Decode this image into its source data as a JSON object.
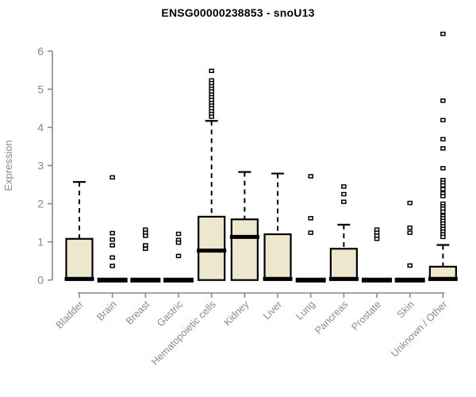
{
  "chart_data": {
    "type": "boxplot",
    "title": "ENSG00000238853 - snoU13",
    "ylabel": "Expression",
    "ylim": [
      0,
      6
    ],
    "yticks": [
      0,
      1,
      2,
      3,
      4,
      5,
      6
    ],
    "grid": false,
    "legend": "none",
    "box_fill": "#ede8cd",
    "box_stroke": "#000000",
    "axis_color": "#898989",
    "categories": [
      "Bladder",
      "Brain",
      "Breast",
      "Gastric",
      "Hematopoietic cells",
      "Kidney",
      "Liver",
      "Lung",
      "Pancreas",
      "Prostate",
      "Skin",
      "Unknown / Other"
    ],
    "boxes": [
      {
        "name": "Bladder",
        "q1": 0,
        "median": 0.03,
        "q3": 1.08,
        "whisker_low": 0,
        "whisker_high": 2.57,
        "outliers": []
      },
      {
        "name": "Brain",
        "q1": 0,
        "median": 0,
        "q3": 0,
        "whisker_low": 0,
        "whisker_high": 0,
        "outliers": [
          2.69,
          1.23,
          1.06,
          0.91,
          0.59,
          0.37
        ]
      },
      {
        "name": "Breast",
        "q1": 0,
        "median": 0,
        "q3": 0,
        "whisker_low": 0,
        "whisker_high": 0,
        "outliers": [
          1.32,
          1.24,
          1.16,
          0.91,
          0.82
        ]
      },
      {
        "name": "Gastric",
        "q1": 0,
        "median": 0,
        "q3": 0,
        "whisker_low": 0,
        "whisker_high": 0,
        "outliers": [
          1.21,
          1.05,
          0.98,
          0.63
        ]
      },
      {
        "name": "Hematopoietic cells",
        "q1": 0,
        "median": 0.77,
        "q3": 1.66,
        "whisker_low": 0,
        "whisker_high": 4.17,
        "outliers": [
          5.48,
          5.23,
          5.16,
          5.08,
          5.01,
          4.94,
          4.86,
          4.79,
          4.72,
          4.64,
          4.57,
          4.5,
          4.42,
          4.35,
          4.28
        ]
      },
      {
        "name": "Kidney",
        "q1": 0,
        "median": 1.13,
        "q3": 1.59,
        "whisker_low": 0,
        "whisker_high": 2.83,
        "outliers": []
      },
      {
        "name": "Liver",
        "q1": 0,
        "median": 0.03,
        "q3": 1.2,
        "whisker_low": 0,
        "whisker_high": 2.79,
        "outliers": []
      },
      {
        "name": "Lung",
        "q1": 0,
        "median": 0,
        "q3": 0,
        "whisker_low": 0,
        "whisker_high": 0,
        "outliers": [
          2.72,
          1.62,
          1.24
        ]
      },
      {
        "name": "Pancreas",
        "q1": 0,
        "median": 0.03,
        "q3": 0.82,
        "whisker_low": 0,
        "whisker_high": 1.45,
        "outliers": [
          2.45,
          2.25,
          2.05
        ]
      },
      {
        "name": "Prostate",
        "q1": 0,
        "median": 0,
        "q3": 0,
        "whisker_low": 0,
        "whisker_high": 0,
        "outliers": [
          1.32,
          1.24,
          1.16,
          1.08
        ]
      },
      {
        "name": "Skin",
        "q1": 0,
        "median": 0,
        "q3": 0,
        "whisker_low": 0,
        "whisker_high": 0,
        "outliers": [
          2.02,
          1.37,
          1.24,
          0.38
        ]
      },
      {
        "name": "Unknown / Other",
        "q1": 0,
        "median": 0.03,
        "q3": 0.35,
        "whisker_low": 0,
        "whisker_high": 0.92,
        "outliers": [
          6.45,
          4.7,
          4.19,
          3.69,
          3.45,
          2.93,
          2.62,
          2.55,
          2.48,
          2.38,
          2.27,
          2.2,
          2.0,
          1.93,
          1.87,
          1.79,
          1.68,
          1.62,
          1.55,
          1.48,
          1.41,
          1.34,
          1.27,
          1.2,
          1.13
        ]
      }
    ]
  }
}
